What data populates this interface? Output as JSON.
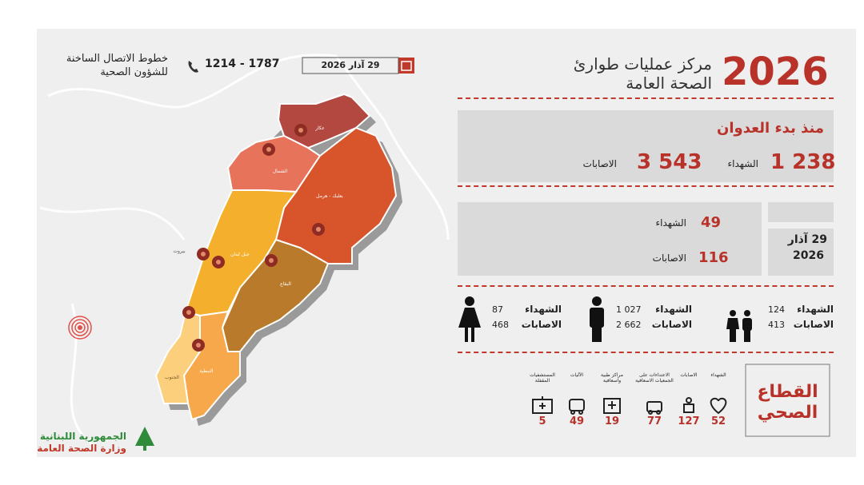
{
  "header": {
    "year": "2026",
    "title_line1": "مركز عمليات طوارئ",
    "title_line2": "الصحة العامة",
    "date": "29 آذار 2026",
    "hotline": "1214 - 1787",
    "hotline_label_line1": "خطوط الاتصال الساخنة",
    "hotline_label_line2": "للشؤون الصحية"
  },
  "since_start": {
    "title": "منذ بدء العدوان",
    "items": [
      {
        "value": "1 238",
        "label": "الشهداء"
      },
      {
        "value": "3 543",
        "label": "الاصابات"
      }
    ]
  },
  "daily": {
    "date_line1": "29 آذار",
    "date_line2": "2026",
    "items": [
      {
        "value": "49",
        "label": "الشهداء"
      },
      {
        "value": "116",
        "label": "الاصابات"
      }
    ]
  },
  "demographics": [
    {
      "killed_label": "الشهداء",
      "killed": "124",
      "injured_label": "الاصابات",
      "injured": "413"
    },
    {
      "killed_label": "الشهداء",
      "killed": "1 027",
      "injured_label": "الاصابات",
      "injured": "2 662"
    },
    {
      "killed_label": "الشهداء",
      "killed": "87",
      "injured_label": "الاصابات",
      "injured": "468"
    }
  ],
  "health_sector": {
    "title_line1": "القطاع",
    "title_line2": "الصحي",
    "items": [
      {
        "label": "الشهداء",
        "value": "52"
      },
      {
        "label": "الاصابات",
        "value": "127"
      },
      {
        "label": "الاعتداءات على الجمعيات الاسعافية",
        "value": "77"
      },
      {
        "label": "مراكز طبية واسعافية",
        "value": "19"
      },
      {
        "label": "الآليات",
        "value": "49"
      },
      {
        "label": "المستشفيات المقفلة",
        "value": "5"
      }
    ]
  },
  "map": {
    "regions": [
      "عكار",
      "الشمال",
      "بعلبك - هرمل",
      "جبل لبنان",
      "بيروت",
      "البقاع",
      "النبطية",
      "الجنوب"
    ]
  },
  "footer": {
    "line1": "الجمهورية اللبنانية",
    "line2": "وزارة الصحة العامة"
  }
}
